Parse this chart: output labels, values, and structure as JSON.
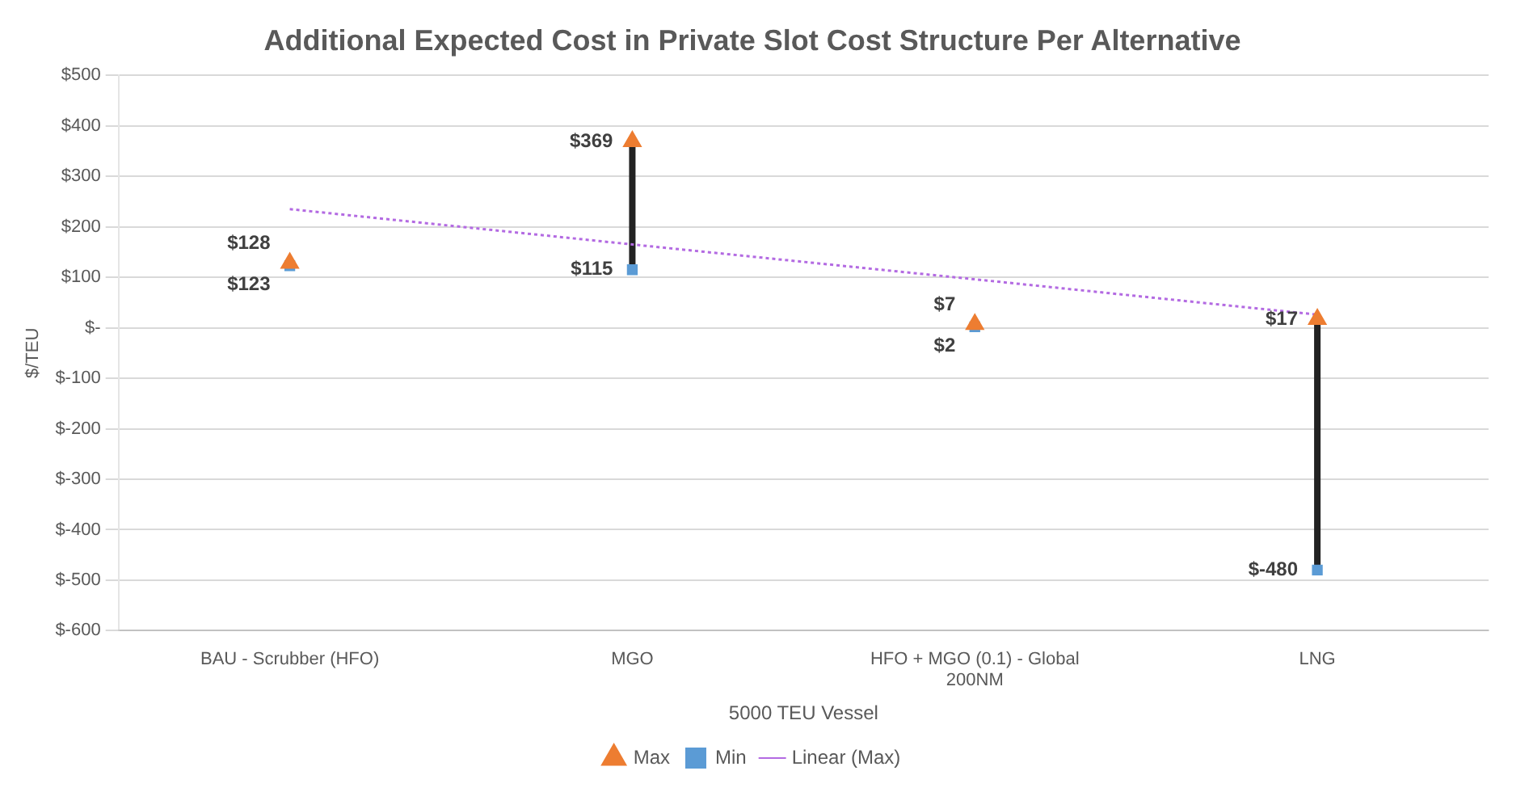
{
  "chart_data": {
    "type": "scatter",
    "title": "Additional Expected Cost in Private Slot Cost Structure Per Alternative",
    "xlabel": "5000 TEU Vessel",
    "ylabel": "$/TEU",
    "categories": [
      "BAU - Scrubber (HFO)",
      "MGO",
      "HFO + MGO (0.1) - Global 200NM",
      "LNG"
    ],
    "series": [
      {
        "name": "Max",
        "color": "#ed7d31",
        "marker": "triangle",
        "values": [
          128,
          369,
          7,
          17
        ],
        "value_labels": [
          "$128",
          "$369",
          "$7",
          "$17"
        ]
      },
      {
        "name": "Min",
        "color": "#5b9bd5",
        "marker": "square",
        "values": [
          123,
          115,
          2,
          -480
        ],
        "value_labels": [
          "$123",
          "$115",
          "$2",
          "$-480"
        ]
      },
      {
        "name": "Linear (Max)",
        "type": "line",
        "color": "#b36ae2",
        "marker": "none",
        "line_style": "dotted",
        "values": [
          235,
          165,
          96,
          26
        ]
      }
    ],
    "ylim": [
      -600,
      500
    ],
    "yticks": [
      {
        "value": -600,
        "label": "$-600"
      },
      {
        "value": -500,
        "label": "$-500"
      },
      {
        "value": -400,
        "label": "$-400"
      },
      {
        "value": -300,
        "label": "$-300"
      },
      {
        "value": -200,
        "label": "$-200"
      },
      {
        "value": -100,
        "label": "$-100"
      },
      {
        "value": 0,
        "label": "$-"
      },
      {
        "value": 100,
        "label": "$100"
      },
      {
        "value": 200,
        "label": "$200"
      },
      {
        "value": 300,
        "label": "$300"
      },
      {
        "value": 400,
        "label": "$400"
      },
      {
        "value": 500,
        "label": "$500"
      }
    ],
    "grid": "y",
    "legend": "bottom"
  }
}
